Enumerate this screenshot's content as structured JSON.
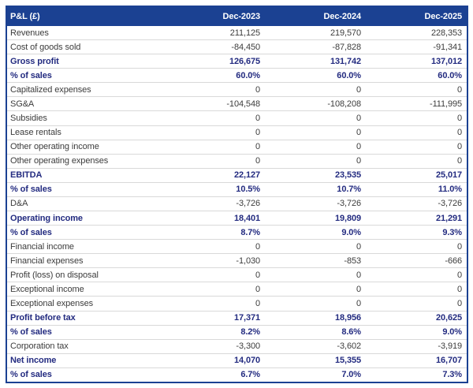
{
  "colors": {
    "header_bg": "#1b4192",
    "border": "#1b4192",
    "emphasis_text": "#232b80",
    "body_text": "#3c3c3c",
    "separator": "#d9d9d9"
  },
  "table": {
    "title": "P&L (£)",
    "columns": [
      "Dec-2023",
      "Dec-2024",
      "Dec-2025"
    ],
    "rows": [
      {
        "label": "Revenues",
        "values": [
          "211,125",
          "219,570",
          "228,353"
        ],
        "emphasis": false
      },
      {
        "label": "Cost of goods sold",
        "values": [
          "-84,450",
          "-87,828",
          "-91,341"
        ],
        "emphasis": false
      },
      {
        "label": "Gross profit",
        "values": [
          "126,675",
          "131,742",
          "137,012"
        ],
        "emphasis": true
      },
      {
        "label": "% of sales",
        "values": [
          "60.0%",
          "60.0%",
          "60.0%"
        ],
        "emphasis": true
      },
      {
        "label": "Capitalized expenses",
        "values": [
          "0",
          "0",
          "0"
        ],
        "emphasis": false
      },
      {
        "label": "SG&A",
        "values": [
          "-104,548",
          "-108,208",
          "-111,995"
        ],
        "emphasis": false
      },
      {
        "label": "Subsidies",
        "values": [
          "0",
          "0",
          "0"
        ],
        "emphasis": false
      },
      {
        "label": "Lease rentals",
        "values": [
          "0",
          "0",
          "0"
        ],
        "emphasis": false
      },
      {
        "label": "Other operating income",
        "values": [
          "0",
          "0",
          "0"
        ],
        "emphasis": false
      },
      {
        "label": "Other operating expenses",
        "values": [
          "0",
          "0",
          "0"
        ],
        "emphasis": false
      },
      {
        "label": "EBITDA",
        "values": [
          "22,127",
          "23,535",
          "25,017"
        ],
        "emphasis": true
      },
      {
        "label": "% of sales",
        "values": [
          "10.5%",
          "10.7%",
          "11.0%"
        ],
        "emphasis": true
      },
      {
        "label": "D&A",
        "values": [
          "-3,726",
          "-3,726",
          "-3,726"
        ],
        "emphasis": false
      },
      {
        "label": "Operating income",
        "values": [
          "18,401",
          "19,809",
          "21,291"
        ],
        "emphasis": true
      },
      {
        "label": "% of sales",
        "values": [
          "8.7%",
          "9.0%",
          "9.3%"
        ],
        "emphasis": true
      },
      {
        "label": "Financial income",
        "values": [
          "0",
          "0",
          "0"
        ],
        "emphasis": false
      },
      {
        "label": "Financial expenses",
        "values": [
          "-1,030",
          "-853",
          "-666"
        ],
        "emphasis": false
      },
      {
        "label": "Profit (loss) on disposal",
        "values": [
          "0",
          "0",
          "0"
        ],
        "emphasis": false
      },
      {
        "label": "Exceptional income",
        "values": [
          "0",
          "0",
          "0"
        ],
        "emphasis": false
      },
      {
        "label": "Exceptional expenses",
        "values": [
          "0",
          "0",
          "0"
        ],
        "emphasis": false
      },
      {
        "label": "Profit before tax",
        "values": [
          "17,371",
          "18,956",
          "20,625"
        ],
        "emphasis": true
      },
      {
        "label": "% of sales",
        "values": [
          "8.2%",
          "8.6%",
          "9.0%"
        ],
        "emphasis": true
      },
      {
        "label": "Corporation tax",
        "values": [
          "-3,300",
          "-3,602",
          "-3,919"
        ],
        "emphasis": false
      },
      {
        "label": "Net income",
        "values": [
          "14,070",
          "15,355",
          "16,707"
        ],
        "emphasis": true
      },
      {
        "label": "% of sales",
        "values": [
          "6.7%",
          "7.0%",
          "7.3%"
        ],
        "emphasis": true
      }
    ]
  }
}
